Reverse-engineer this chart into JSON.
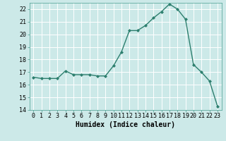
{
  "x": [
    0,
    1,
    2,
    3,
    4,
    5,
    6,
    7,
    8,
    9,
    10,
    11,
    12,
    13,
    14,
    15,
    16,
    17,
    18,
    19,
    20,
    21,
    22,
    23
  ],
  "y": [
    16.6,
    16.5,
    16.5,
    16.5,
    17.1,
    16.8,
    16.8,
    16.8,
    16.7,
    16.7,
    17.5,
    18.6,
    20.3,
    20.3,
    20.7,
    21.3,
    21.8,
    22.4,
    22.0,
    21.2,
    17.6,
    17.0,
    16.3,
    14.3
  ],
  "line_color": "#2d7f6e",
  "marker": "D",
  "marker_size": 2.0,
  "line_width": 1.0,
  "bg_color": "#cce9e8",
  "grid_color": "#ffffff",
  "grid_linewidth": 0.7,
  "xlabel": "Humidex (Indice chaleur)",
  "xlim": [
    -0.5,
    23.5
  ],
  "ylim": [
    14,
    22.5
  ],
  "yticks": [
    14,
    15,
    16,
    17,
    18,
    19,
    20,
    21,
    22
  ],
  "xticks": [
    0,
    1,
    2,
    3,
    4,
    5,
    6,
    7,
    8,
    9,
    10,
    11,
    12,
    13,
    14,
    15,
    16,
    17,
    18,
    19,
    20,
    21,
    22,
    23
  ],
  "tick_fontsize": 6,
  "label_fontsize": 7,
  "spine_color": "#4a9e90"
}
